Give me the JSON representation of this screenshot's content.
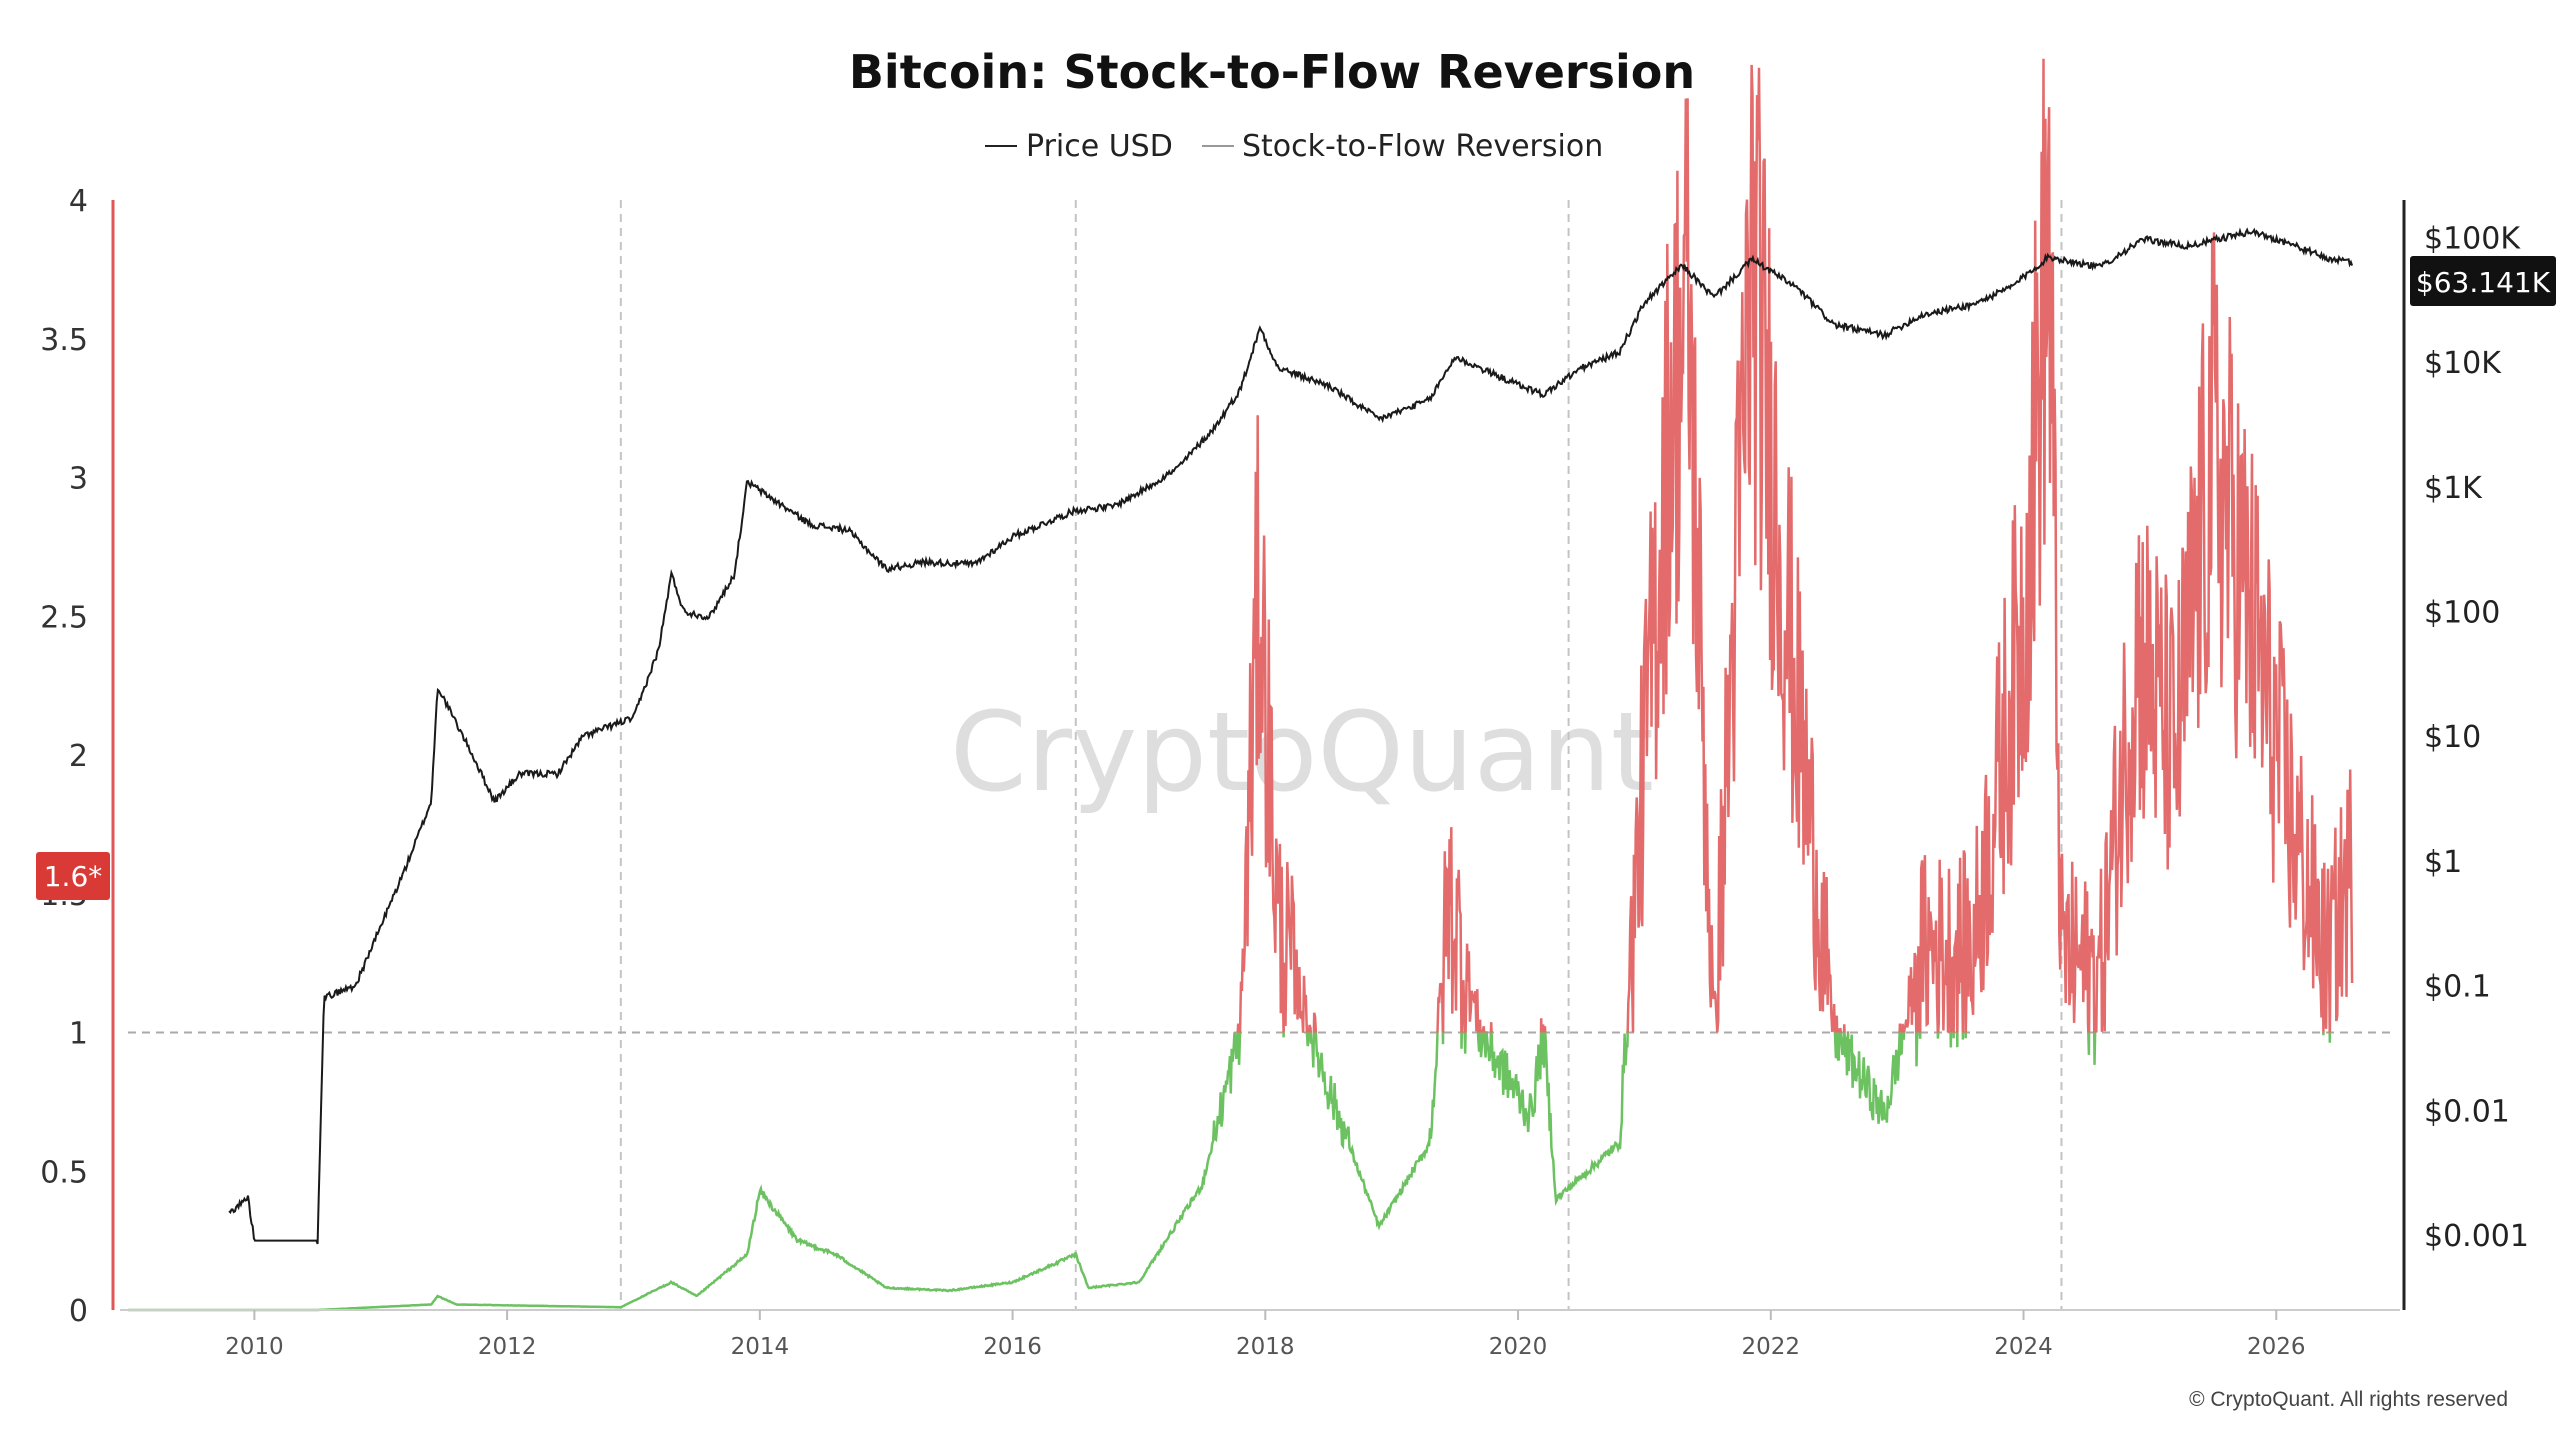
{
  "chart_data": {
    "type": "line",
    "title": "Bitcoin: Stock-to-Flow Reversion",
    "legend": {
      "placement": "top-center",
      "entries": [
        {
          "name": "Price USD",
          "color": "#222222"
        },
        {
          "name": "Stock-to-Flow Reversion",
          "color": "#999999"
        }
      ]
    },
    "watermark": "CryptoQuant",
    "copyright": "© CryptoQuant. All rights reserved",
    "x_axis": {
      "range": [
        2009.0,
        2026.9
      ],
      "ticks": [
        "2010",
        "2012",
        "2014",
        "2016",
        "2018",
        "2020",
        "2022",
        "2024",
        "2026"
      ],
      "halving_lines": [
        2012.9,
        2016.5,
        2020.4,
        2024.3
      ]
    },
    "y_left": {
      "range": [
        0,
        4.0
      ],
      "ticks": [
        "0",
        "0.5",
        "1",
        "1.5",
        "2",
        "2.5",
        "3",
        "3.5",
        "4"
      ],
      "color": "#e05555"
    },
    "y_right": {
      "scale": "log",
      "range": [
        0.00025,
        200000
      ],
      "ticks": [
        {
          "label": "$0.001",
          "value": 0.001
        },
        {
          "label": "$0.01",
          "value": 0.01
        },
        {
          "label": "$0.1",
          "value": 0.1
        },
        {
          "label": "$1",
          "value": 1
        },
        {
          "label": "$10",
          "value": 10
        },
        {
          "label": "$100",
          "value": 100
        },
        {
          "label": "$1K",
          "value": 1000
        },
        {
          "label": "$10K",
          "value": 10000
        },
        {
          "label": "$100K",
          "value": 100000
        }
      ]
    },
    "reference_line": {
      "value": 1,
      "style": "dashed"
    },
    "badges": {
      "left": "1.6*",
      "right": "$63.141K"
    },
    "colors": {
      "above_1": "#e36b6b",
      "below_1": "#6cc261",
      "price": "#1a1a1a",
      "left_axis": "#e05555"
    },
    "series": [
      {
        "name": "Price USD",
        "axis": "right",
        "points": [
          [
            2009.8,
            0.0015
          ],
          [
            2009.95,
            0.002
          ],
          [
            2010.0,
            0.0009
          ],
          [
            2010.5,
            0.0009
          ],
          [
            2010.55,
            0.08
          ],
          [
            2010.8,
            0.1
          ],
          [
            2011.0,
            0.3
          ],
          [
            2011.2,
            0.9
          ],
          [
            2011.4,
            3
          ],
          [
            2011.45,
            25
          ],
          [
            2011.7,
            8
          ],
          [
            2011.9,
            3
          ],
          [
            2012.1,
            5
          ],
          [
            2012.4,
            5
          ],
          [
            2012.6,
            10
          ],
          [
            2012.9,
            13
          ],
          [
            2013.0,
            14
          ],
          [
            2013.2,
            50
          ],
          [
            2013.3,
            200
          ],
          [
            2013.4,
            100
          ],
          [
            2013.6,
            90
          ],
          [
            2013.8,
            200
          ],
          [
            2013.9,
            1100
          ],
          [
            2014.1,
            800
          ],
          [
            2014.4,
            500
          ],
          [
            2014.7,
            450
          ],
          [
            2015.0,
            220
          ],
          [
            2015.3,
            250
          ],
          [
            2015.7,
            240
          ],
          [
            2016.0,
            400
          ],
          [
            2016.5,
            650
          ],
          [
            2016.8,
            700
          ],
          [
            2017.0,
            900
          ],
          [
            2017.3,
            1400
          ],
          [
            2017.6,
            3000
          ],
          [
            2017.8,
            6000
          ],
          [
            2017.96,
            19000
          ],
          [
            2018.1,
            9000
          ],
          [
            2018.5,
            6500
          ],
          [
            2018.9,
            3500
          ],
          [
            2019.3,
            5000
          ],
          [
            2019.5,
            11000
          ],
          [
            2019.9,
            7300
          ],
          [
            2020.2,
            5500
          ],
          [
            2020.5,
            9000
          ],
          [
            2020.8,
            12000
          ],
          [
            2021.0,
            30000
          ],
          [
            2021.3,
            60000
          ],
          [
            2021.55,
            33000
          ],
          [
            2021.85,
            67000
          ],
          [
            2022.2,
            40000
          ],
          [
            2022.5,
            20000
          ],
          [
            2022.9,
            16500
          ],
          [
            2023.2,
            24000
          ],
          [
            2023.6,
            29000
          ],
          [
            2023.9,
            40000
          ],
          [
            2024.2,
            70000
          ],
          [
            2024.6,
            58000
          ],
          [
            2024.95,
            97000
          ],
          [
            2025.3,
            85000
          ],
          [
            2025.8,
            112000
          ],
          [
            2026.1,
            90000
          ],
          [
            2026.4,
            68000
          ],
          [
            2026.6,
            63141
          ]
        ]
      },
      {
        "name": "Stock-to-Flow Reversion",
        "axis": "left",
        "points": [
          [
            2009.0,
            0.0
          ],
          [
            2010.5,
            0.0
          ],
          [
            2011.4,
            0.02
          ],
          [
            2011.45,
            0.05
          ],
          [
            2011.6,
            0.02
          ],
          [
            2012.9,
            0.01
          ],
          [
            2013.3,
            0.1
          ],
          [
            2013.5,
            0.05
          ],
          [
            2013.9,
            0.2
          ],
          [
            2014.0,
            0.43
          ],
          [
            2014.3,
            0.25
          ],
          [
            2014.6,
            0.2
          ],
          [
            2015.0,
            0.08
          ],
          [
            2015.5,
            0.07
          ],
          [
            2016.0,
            0.1
          ],
          [
            2016.5,
            0.2
          ],
          [
            2016.6,
            0.08
          ],
          [
            2017.0,
            0.1
          ],
          [
            2017.5,
            0.45
          ],
          [
            2017.8,
            1.0
          ],
          [
            2017.95,
            2.65
          ],
          [
            2018.1,
            1.4
          ],
          [
            2018.5,
            0.8
          ],
          [
            2018.9,
            0.3
          ],
          [
            2019.3,
            0.6
          ],
          [
            2019.45,
            1.5
          ],
          [
            2019.7,
            1.0
          ],
          [
            2020.1,
            0.7
          ],
          [
            2020.2,
            1.0
          ],
          [
            2020.3,
            0.4
          ],
          [
            2020.8,
            0.6
          ],
          [
            2021.0,
            2.0
          ],
          [
            2021.2,
            3.2
          ],
          [
            2021.35,
            3.6
          ],
          [
            2021.55,
            1.0
          ],
          [
            2021.85,
            3.8
          ],
          [
            2022.2,
            2.2
          ],
          [
            2022.5,
            1.0
          ],
          [
            2022.9,
            0.7
          ],
          [
            2023.2,
            1.3
          ],
          [
            2023.6,
            1.3
          ],
          [
            2024.0,
            2.5
          ],
          [
            2024.2,
            3.9
          ],
          [
            2024.3,
            1.3
          ],
          [
            2024.6,
            1.2
          ],
          [
            2024.9,
            2.4
          ],
          [
            2025.2,
            2.0
          ],
          [
            2025.5,
            3.1
          ],
          [
            2025.8,
            2.5
          ],
          [
            2026.1,
            1.8
          ],
          [
            2026.4,
            1.25
          ],
          [
            2026.6,
            1.6
          ]
        ]
      }
    ]
  }
}
